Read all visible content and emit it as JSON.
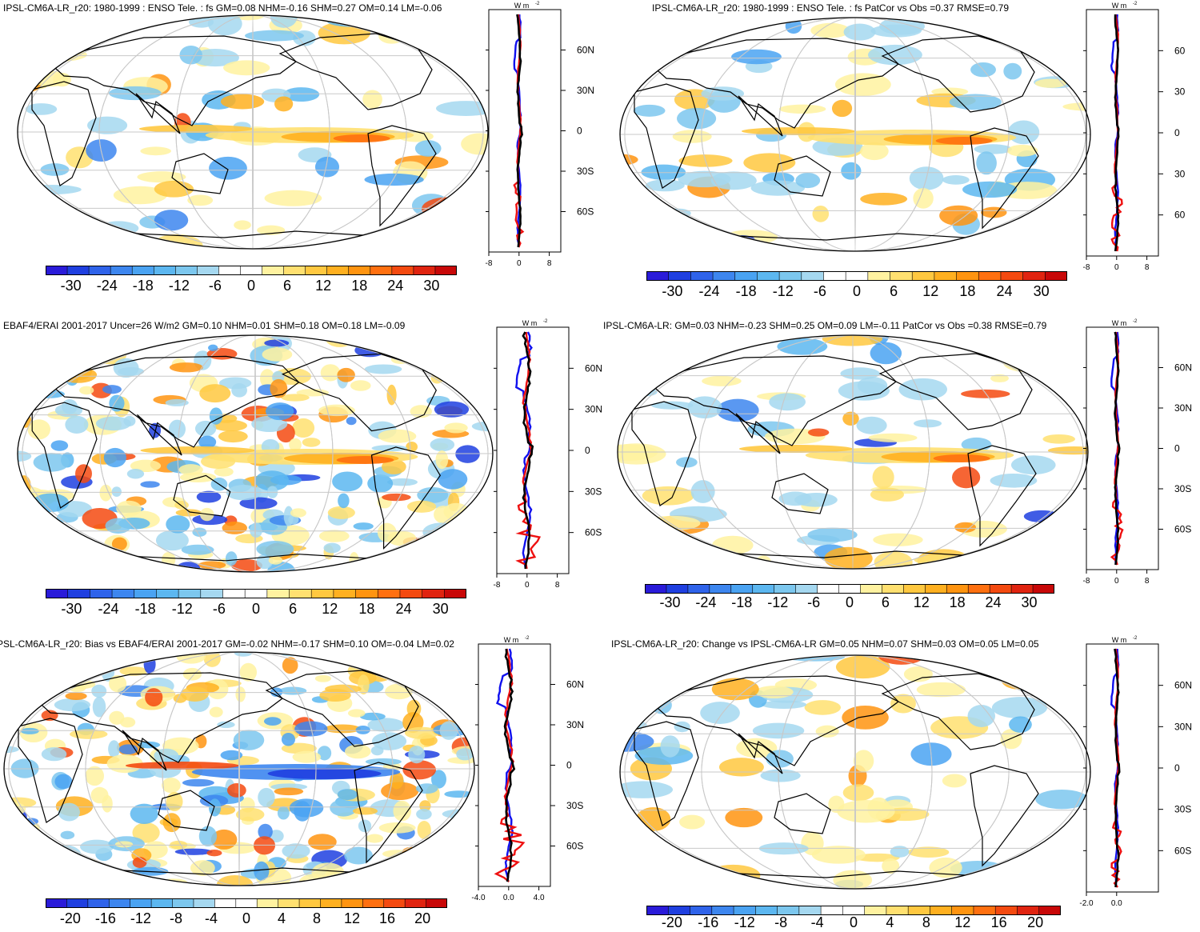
{
  "panels": [
    {
      "id": "tl",
      "title": "IPSL-CM6A-LR_r20: 1980-1999 : ENSO Tele. : fs GM=0.08 NHM=-0.16 SHM=0.27 OM=0.14 LM=-0.06",
      "colorbar_labels": [
        "-30",
        "-24",
        "-18",
        "-12",
        "-6",
        "0",
        "6",
        "12",
        "18",
        "24",
        "30"
      ],
      "zonal_units": "W m",
      "zonal_units_exp": "-2",
      "zonal_lat_labels": [
        "60N",
        "30N",
        "0",
        "30S",
        "60S"
      ],
      "zonal_x_labels": [
        "-8",
        "0",
        "8"
      ]
    },
    {
      "id": "tr",
      "title": "IPSL-CM6A-LR_r20: 1980-1999 : ENSO Tele. : fs PatCor vs Obs =0.37 RMSE=0.79",
      "colorbar_labels": [
        "-30",
        "-24",
        "-18",
        "-12",
        "-6",
        "0",
        "6",
        "12",
        "18",
        "24",
        "30"
      ],
      "zonal_units": "W m",
      "zonal_units_exp": "-2",
      "zonal_lat_labels": [
        "60",
        "30",
        "0",
        "30",
        "60"
      ],
      "zonal_x_labels": [
        "-8",
        "0",
        "8"
      ]
    },
    {
      "id": "ml",
      "title": "EBAF4/ERAI 2001-2017 Uncer=26 W/m2 GM=0.10 NHM=0.01 SHM=0.18 OM=0.18 LM=-0.09",
      "colorbar_labels": [
        "-30",
        "-24",
        "-18",
        "-12",
        "-6",
        "0",
        "6",
        "12",
        "18",
        "24",
        "30"
      ],
      "zonal_units": "W m",
      "zonal_units_exp": "-2",
      "zonal_lat_labels": [
        "60N",
        "30N",
        "0",
        "30S",
        "60S"
      ],
      "zonal_x_labels": [
        "-8",
        "0",
        "8"
      ]
    },
    {
      "id": "mr",
      "title": "IPSL-CM6A-LR: GM=0.03 NHM=-0.23 SHM=0.25 OM=0.09 LM=-0.11 PatCor vs Obs =0.38 RMSE=0.79",
      "colorbar_labels": [
        "-30",
        "-24",
        "-18",
        "-12",
        "-6",
        "0",
        "6",
        "12",
        "18",
        "24",
        "30"
      ],
      "zonal_units": "W m",
      "zonal_units_exp": "-2",
      "zonal_lat_labels": [
        "60N",
        "30N",
        "0",
        "30S",
        "60S"
      ],
      "zonal_x_labels": [
        "-8",
        "0",
        "8"
      ]
    },
    {
      "id": "bl",
      "title": "PSL-CM6A-LR_r20: Bias vs EBAF4/ERAI 2001-2017 GM=-0.02 NHM=-0.17 SHM=0.10 OM=-0.04 LM=0.02",
      "colorbar_labels": [
        "-20",
        "-16",
        "-12",
        "-8",
        "-4",
        "0",
        "4",
        "8",
        "12",
        "16",
        "20"
      ],
      "zonal_units": "W m",
      "zonal_units_exp": "-2",
      "zonal_lat_labels": [
        "60N",
        "30N",
        "0",
        "30S",
        "60S"
      ],
      "zonal_x_labels": [
        "-4.0",
        "0.0",
        "4.0"
      ]
    },
    {
      "id": "br",
      "title": "IPSL-CM6A-LR_r20: Change vs IPSL-CM6A-LR GM=0.05 NHM=0.07 SHM=0.03 OM=0.05 LM=0.05",
      "colorbar_labels": [
        "-20",
        "-16",
        "-12",
        "-8",
        "-4",
        "0",
        "4",
        "8",
        "12",
        "16",
        "20"
      ],
      "zonal_units": "W m",
      "zonal_units_exp": "-2",
      "zonal_lat_labels": [
        "60N",
        "30N",
        "0",
        "30S",
        "60S"
      ],
      "zonal_x_labels": [
        "-2.0",
        "0.0"
      ]
    }
  ],
  "colors": {
    "colorbar_scale": [
      "#2a1bd9",
      "#1f3fe0",
      "#2f63ea",
      "#3d86ef",
      "#4aa3f2",
      "#5cb7f0",
      "#7cc7ee",
      "#a5d8f0",
      "#ffffff",
      "#ffffff",
      "#fff2a0",
      "#ffe070",
      "#ffc840",
      "#ffb020",
      "#ff9410",
      "#ff7010",
      "#f44a10",
      "#e02410",
      "#c80808"
    ],
    "zonal_model": "#1010ee",
    "zonal_obs": "#ee1010",
    "zonal_ref": "#000000",
    "grid": "#c8c8c8",
    "coast": "#000000"
  }
}
